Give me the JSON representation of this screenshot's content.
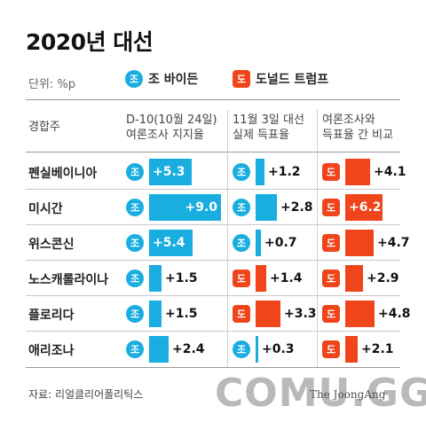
{
  "title": "2020년 대선",
  "unit": "단위: %p",
  "legend": {
    "biden": {
      "badge": "조",
      "label": "조 바이든"
    },
    "trump": {
      "badge": "도",
      "label": "도널드 트럼프"
    }
  },
  "headers": {
    "state": "경합주",
    "col1": [
      "D-10(10월 24일)",
      "여론조사 지지율"
    ],
    "col2": [
      "11월 3일 대선",
      "실제 득표율"
    ],
    "col3": [
      "여론조사와",
      "득표율 간 비교"
    ]
  },
  "colors": {
    "biden": "#19ade0",
    "trump": "#f0441b"
  },
  "chart_data": {
    "type": "table",
    "title": "2020년 대선",
    "unit": "%p",
    "columns": [
      "D-10(10월 24일) 여론조사 지지율",
      "11월 3일 대선 실제 득표율",
      "여론조사와 득표율 간 비교"
    ],
    "rows": [
      {
        "state": "펜실베이니아",
        "poll": {
          "leader": "조",
          "value": 5.3,
          "label": "+5.3"
        },
        "result": {
          "leader": "조",
          "value": 1.2,
          "label": "+1.2"
        },
        "diff": {
          "leader": "도",
          "value": 4.1,
          "label": "+4.1"
        }
      },
      {
        "state": "미시간",
        "poll": {
          "leader": "조",
          "value": 9.0,
          "label": "+9.0"
        },
        "result": {
          "leader": "조",
          "value": 2.8,
          "label": "+2.8"
        },
        "diff": {
          "leader": "도",
          "value": 6.2,
          "label": "+6.2"
        }
      },
      {
        "state": "위스콘신",
        "poll": {
          "leader": "조",
          "value": 5.4,
          "label": "+5.4"
        },
        "result": {
          "leader": "조",
          "value": 0.7,
          "label": "+0.7"
        },
        "diff": {
          "leader": "도",
          "value": 4.7,
          "label": "+4.7"
        }
      },
      {
        "state": "노스캐롤라이나",
        "poll": {
          "leader": "조",
          "value": 1.5,
          "label": "+1.5"
        },
        "result": {
          "leader": "도",
          "value": 1.4,
          "label": "+1.4"
        },
        "diff": {
          "leader": "도",
          "value": 2.9,
          "label": "+2.9"
        }
      },
      {
        "state": "플로리다",
        "poll": {
          "leader": "조",
          "value": 1.5,
          "label": "+1.5"
        },
        "result": {
          "leader": "도",
          "value": 3.3,
          "label": "+3.3"
        },
        "diff": {
          "leader": "도",
          "value": 4.8,
          "label": "+4.8"
        }
      },
      {
        "state": "애리조나",
        "poll": {
          "leader": "조",
          "value": 2.4,
          "label": "+2.4"
        },
        "result": {
          "leader": "조",
          "value": 0.3,
          "label": "+0.3"
        },
        "diff": {
          "leader": "도",
          "value": 2.1,
          "label": "+2.1"
        }
      }
    ]
  },
  "source": "자료: 리얼클리어폴리틱스",
  "watermark": "COMU.GG",
  "publisher": "The JoongAng"
}
